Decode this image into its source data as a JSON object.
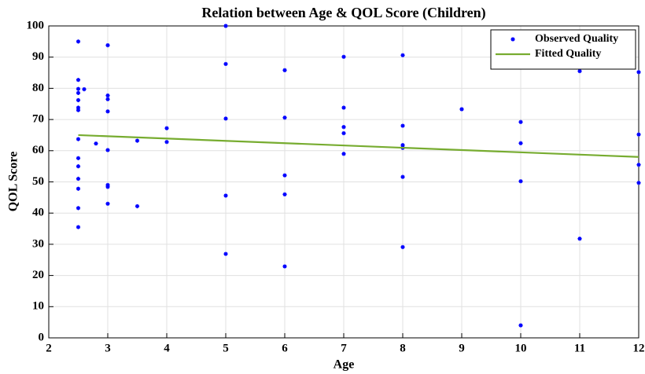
{
  "chart_data": {
    "type": "scatter",
    "title": "Relation between Age & QOL Score (Children)",
    "xlabel": "Age",
    "ylabel": "QOL Score",
    "xlim": [
      2,
      12
    ],
    "ylim": [
      0,
      100
    ],
    "xticks": [
      2,
      3,
      4,
      5,
      6,
      7,
      8,
      9,
      10,
      11,
      12
    ],
    "yticks": [
      0,
      10,
      20,
      30,
      40,
      50,
      60,
      70,
      80,
      90,
      100
    ],
    "grid": true,
    "legend": "upper right",
    "series": [
      {
        "name": "Observed Quality",
        "kind": "scatter",
        "color": "#0000ff",
        "x": [
          2.5,
          2.5,
          2.5,
          2.5,
          2.5,
          2.5,
          2.5,
          2.5,
          2.5,
          2.5,
          2.5,
          2.5,
          2.5,
          2.5,
          2.6,
          2.8,
          3,
          3,
          3,
          3,
          3,
          3,
          3,
          3,
          3.5,
          3.5,
          4,
          4,
          5,
          5,
          5,
          5,
          5,
          6,
          6,
          6,
          6,
          6,
          7,
          7,
          7,
          7,
          7,
          8,
          8,
          8,
          8,
          8,
          8,
          9,
          10,
          10,
          10,
          10,
          11,
          11,
          12,
          12,
          12,
          12
        ],
        "values": [
          95,
          82.7,
          79.8,
          78.5,
          76.2,
          73.8,
          73,
          63.7,
          57.6,
          55,
          51,
          47.8,
          41.6,
          35.5,
          79.7,
          62.3,
          93.8,
          77.7,
          76.5,
          72.6,
          60.2,
          49,
          48.4,
          43,
          63.2,
          42.2,
          67.2,
          62.8,
          100,
          87.8,
          70.3,
          45.6,
          26.9,
          85.8,
          70.6,
          52.1,
          46,
          22.9,
          90.1,
          73.8,
          67.6,
          65.6,
          59,
          90.6,
          68,
          61.8,
          60.9,
          51.6,
          29.1,
          73.3,
          69.2,
          62.4,
          50.2,
          4,
          85.5,
          31.8,
          85.2,
          65.2,
          55.5,
          49.7
        ]
      },
      {
        "name": "Fitted Quality",
        "kind": "line",
        "color": "#77ac30",
        "x": [
          2.5,
          12
        ],
        "values": [
          65,
          58
        ]
      }
    ]
  }
}
